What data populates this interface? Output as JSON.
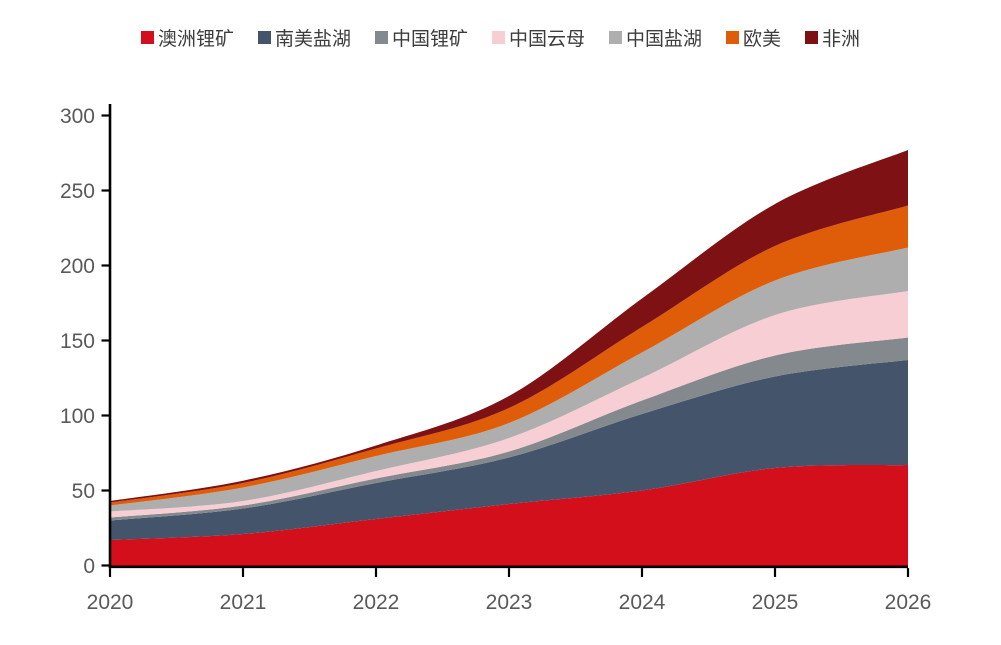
{
  "page": {
    "background": "#ffffff"
  },
  "chart_data": {
    "type": "area",
    "stacked": true,
    "title": "",
    "categories": [
      "2020",
      "2021",
      "2022",
      "2023",
      "2024",
      "2025",
      "2026"
    ],
    "series": [
      {
        "name": "澳洲锂矿",
        "color": "#d40f1c",
        "values": [
          17,
          21,
          31,
          41,
          50,
          65,
          67
        ]
      },
      {
        "name": "南美盐湖",
        "color": "#44546a",
        "values": [
          13,
          17,
          24,
          31,
          51,
          61,
          70
        ]
      },
      {
        "name": "中国锂矿",
        "color": "#84898e",
        "values": [
          2,
          2,
          3,
          4,
          9,
          14,
          15
        ]
      },
      {
        "name": "中国云母",
        "color": "#f6ced3",
        "values": [
          4,
          3,
          5,
          9,
          15,
          27,
          31
        ]
      },
      {
        "name": "中国盐湖",
        "color": "#aeaeae",
        "values": [
          4,
          9,
          10,
          10,
          17,
          23,
          29
        ]
      },
      {
        "name": "欧美",
        "color": "#df5c08",
        "values": [
          2,
          3,
          5,
          10,
          17,
          23,
          28
        ]
      },
      {
        "name": "非洲",
        "color": "#7e1113",
        "values": [
          1,
          1.5,
          2,
          8,
          19,
          28,
          37
        ]
      }
    ],
    "ylim": [
      0,
      300
    ],
    "yticks": [
      0,
      50,
      100,
      150,
      200,
      250,
      300
    ],
    "xlabel": "",
    "ylabel": "",
    "grid": false,
    "legend_position": "top",
    "axis_color": "#000000",
    "tick_label_color": "#595959",
    "legend_text_color": "#3d3d3d"
  }
}
